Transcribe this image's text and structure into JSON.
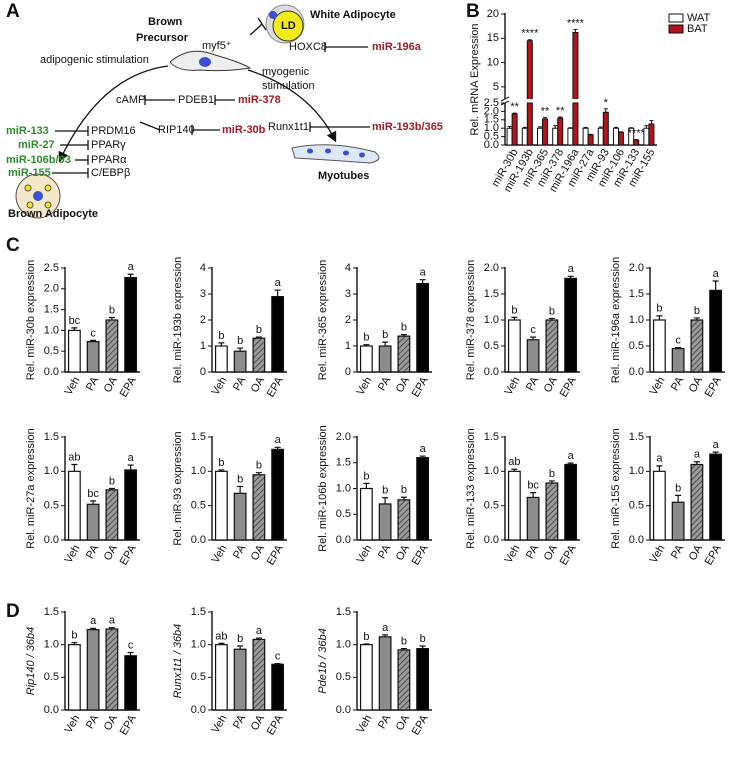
{
  "panel_labels": [
    "A",
    "B",
    "C",
    "D"
  ],
  "diagram": {
    "precursor": [
      "Brown",
      "Precursor"
    ],
    "myf5": "myf5⁺",
    "white_adipocyte": "White Adipocyte",
    "ld": "LD",
    "hoxc8": "HOXC8",
    "mir196a": "miR-196a",
    "adipogenic": "adipogenic stimulation",
    "myogenic": [
      "myogenic",
      "stimulation"
    ],
    "camp": "cAMP",
    "pdeb1": "PDEB1",
    "mir378": "miR-378",
    "runx1t1": "Runx1t1",
    "mir193b365": "miR-193b/365",
    "rip140": "RIP140",
    "mir30b": "miR-30b",
    "mir133": "miR-133",
    "prdm16": "PRDM16",
    "mir27": "miR-27",
    "ppar_g": "PPARγ",
    "mir106b93": "miR-106b/93",
    "ppar_a": "PPARα",
    "mir155": "miR-155",
    "cebpb": "C/EBPβ",
    "brown_adipocyte": "Brown Adipocyte",
    "myotubes": "Myotubes"
  },
  "chart_data": [
    {
      "type": "broken-bar",
      "ylabel": "Rel. mRNA Expression",
      "categories": [
        "miR-30b",
        "miR-193b",
        "miR-365",
        "miR-378",
        "miR-196a",
        "miR-27a",
        "miR-93",
        "miR-106",
        "miR-133",
        "miR-155"
      ],
      "series": [
        {
          "name": "WAT",
          "color": "#ffffff",
          "values": [
            1.0,
            1.0,
            1.0,
            1.0,
            1.0,
            1.0,
            1.0,
            1.0,
            1.0,
            1.0
          ],
          "errors": [
            0.1,
            0.05,
            0.08,
            0.15,
            0.03,
            0.05,
            0.07,
            0.05,
            0.03,
            0.15
          ]
        },
        {
          "name": "BAT",
          "color": "#b3141b",
          "values": [
            1.85,
            14.5,
            1.55,
            1.6,
            16.2,
            0.6,
            1.95,
            0.75,
            0.3,
            1.25
          ],
          "errors": [
            0.05,
            0.2,
            0.08,
            0.07,
            0.6,
            0.03,
            0.2,
            0.03,
            0.02,
            0.2
          ],
          "annotations": [
            "**",
            "****",
            "**",
            "**",
            "****",
            null,
            "*",
            null,
            "****",
            null
          ]
        }
      ],
      "ylim_lower": [
        0,
        2.5
      ],
      "ylim_upper": [
        2.5,
        20
      ],
      "yticks": [
        {
          "value": 0,
          "label": "0.0"
        },
        0.5,
        {
          "value": 1,
          "label": "1.0"
        },
        1.5,
        {
          "value": 2,
          "label": "2.0"
        },
        2.5,
        5,
        10,
        15,
        20
      ],
      "legend": "top-right"
    },
    {
      "type": "bar",
      "ylabel": "Rel. miR-30b expression",
      "categories": [
        "Veh",
        "PA",
        "OA",
        "EPA"
      ],
      "values": [
        1.0,
        0.73,
        1.25,
        2.27
      ],
      "errors": [
        0.06,
        0.03,
        0.06,
        0.08
      ],
      "annotations": [
        "bc",
        "c",
        "b",
        "a"
      ],
      "colors": [
        "#ffffff",
        "#8c8c8c",
        "#9a9a9a",
        "#000000"
      ],
      "patterns": [
        "solid",
        "solid",
        "hatched",
        "solid"
      ],
      "ylim": [
        0,
        2.5
      ],
      "yticks": [
        {
          "value": 0,
          "label": "0.0"
        },
        0.5,
        {
          "value": 1,
          "label": "1.0"
        },
        1.5,
        {
          "value": 2,
          "label": "2.0"
        },
        2.5
      ]
    },
    {
      "type": "bar",
      "ylabel": "Rel. miR-193b expression",
      "categories": [
        "Veh",
        "PA",
        "OA",
        "EPA"
      ],
      "values": [
        1.0,
        0.8,
        1.3,
        2.9
      ],
      "errors": [
        0.12,
        0.12,
        0.04,
        0.25
      ],
      "annotations": [
        "b",
        "b",
        "b",
        "a"
      ],
      "colors": [
        "#ffffff",
        "#8c8c8c",
        "#9a9a9a",
        "#000000"
      ],
      "patterns": [
        "solid",
        "solid",
        "hatched",
        "solid"
      ],
      "ylim": [
        0,
        4
      ],
      "yticks": [
        0,
        1,
        2,
        3,
        4
      ]
    },
    {
      "type": "bar",
      "ylabel": "Rel. miR-365 expression",
      "categories": [
        "Veh",
        "PA",
        "OA",
        "EPA"
      ],
      "values": [
        1.0,
        1.0,
        1.38,
        3.4
      ],
      "errors": [
        0.05,
        0.15,
        0.06,
        0.15
      ],
      "annotations": [
        "b",
        "b",
        "b",
        "a"
      ],
      "colors": [
        "#ffffff",
        "#8c8c8c",
        "#9a9a9a",
        "#000000"
      ],
      "patterns": [
        "solid",
        "solid",
        "hatched",
        "solid"
      ],
      "ylim": [
        0,
        4
      ],
      "yticks": [
        0,
        1,
        2,
        3,
        4
      ]
    },
    {
      "type": "bar",
      "ylabel": "Rel. miR-378 expression",
      "categories": [
        "Veh",
        "PA",
        "OA",
        "EPA"
      ],
      "values": [
        1.0,
        0.62,
        1.0,
        1.8
      ],
      "errors": [
        0.05,
        0.05,
        0.03,
        0.04
      ],
      "annotations": [
        "b",
        "c",
        "b",
        "a"
      ],
      "colors": [
        "#ffffff",
        "#8c8c8c",
        "#9a9a9a",
        "#000000"
      ],
      "patterns": [
        "solid",
        "solid",
        "hatched",
        "solid"
      ],
      "ylim": [
        0,
        2.0
      ],
      "yticks": [
        {
          "value": 0,
          "label": "0.0"
        },
        0.5,
        {
          "value": 1,
          "label": "1.0"
        },
        1.5,
        {
          "value": 2,
          "label": "2.0"
        }
      ]
    },
    {
      "type": "bar",
      "ylabel": "Rel. miR-196a expression",
      "categories": [
        "Veh",
        "PA",
        "OA",
        "EPA"
      ],
      "values": [
        1.0,
        0.45,
        1.0,
        1.57
      ],
      "errors": [
        0.08,
        0.02,
        0.04,
        0.18
      ],
      "annotations": [
        "b",
        "c",
        "b",
        "a"
      ],
      "colors": [
        "#ffffff",
        "#8c8c8c",
        "#9a9a9a",
        "#000000"
      ],
      "patterns": [
        "solid",
        "solid",
        "hatched",
        "solid"
      ],
      "ylim": [
        0,
        2.0
      ],
      "yticks": [
        {
          "value": 0,
          "label": "0.0"
        },
        0.5,
        {
          "value": 1,
          "label": "1.0"
        },
        1.5,
        {
          "value": 2,
          "label": "2.0"
        }
      ]
    },
    {
      "type": "bar",
      "ylabel": "Rel. miR-27a expression",
      "categories": [
        "Veh",
        "PA",
        "OA",
        "EPA"
      ],
      "values": [
        1.0,
        0.52,
        0.73,
        1.02
      ],
      "errors": [
        0.1,
        0.05,
        0.02,
        0.07
      ],
      "annotations": [
        "ab",
        "bc",
        "b",
        "a"
      ],
      "colors": [
        "#ffffff",
        "#8c8c8c",
        "#9a9a9a",
        "#000000"
      ],
      "patterns": [
        "solid",
        "solid",
        "hatched",
        "solid"
      ],
      "ylim": [
        0,
        1.5
      ],
      "yticks": [
        {
          "value": 0,
          "label": "0.0"
        },
        0.5,
        {
          "value": 1,
          "label": "1.0"
        },
        1.5
      ]
    },
    {
      "type": "bar",
      "ylabel": "Rel. miR-93 expression",
      "categories": [
        "Veh",
        "PA",
        "OA",
        "EPA"
      ],
      "values": [
        1.0,
        0.68,
        0.95,
        1.32
      ],
      "errors": [
        0.02,
        0.1,
        0.03,
        0.03
      ],
      "annotations": [
        "b",
        "b",
        "b",
        "a"
      ],
      "colors": [
        "#ffffff",
        "#8c8c8c",
        "#9a9a9a",
        "#000000"
      ],
      "patterns": [
        "solid",
        "solid",
        "hatched",
        "solid"
      ],
      "ylim": [
        0,
        1.5
      ],
      "yticks": [
        {
          "value": 0,
          "label": "0.0"
        },
        0.5,
        {
          "value": 1,
          "label": "1.0"
        },
        1.5
      ]
    },
    {
      "type": "bar",
      "ylabel": "Rel. miR-106b expression",
      "categories": [
        "Veh",
        "PA",
        "OA",
        "EPA"
      ],
      "values": [
        1.0,
        0.7,
        0.78,
        1.6
      ],
      "errors": [
        0.1,
        0.12,
        0.05,
        0.03
      ],
      "annotations": [
        "b",
        "b",
        "b",
        "a"
      ],
      "colors": [
        "#ffffff",
        "#8c8c8c",
        "#9a9a9a",
        "#000000"
      ],
      "patterns": [
        "solid",
        "solid",
        "hatched",
        "solid"
      ],
      "ylim": [
        0,
        2.0
      ],
      "yticks": [
        {
          "value": 0,
          "label": "0.0"
        },
        0.5,
        {
          "value": 1,
          "label": "1.0"
        },
        1.5,
        {
          "value": 2,
          "label": "2.0"
        }
      ]
    },
    {
      "type": "bar",
      "ylabel": "Rel. miR-133 expression",
      "categories": [
        "Veh",
        "PA",
        "OA",
        "EPA"
      ],
      "values": [
        1.0,
        0.62,
        0.83,
        1.1
      ],
      "errors": [
        0.03,
        0.07,
        0.03,
        0.02
      ],
      "annotations": [
        "ab",
        "bc",
        "b",
        "a"
      ],
      "colors": [
        "#ffffff",
        "#8c8c8c",
        "#9a9a9a",
        "#000000"
      ],
      "patterns": [
        "solid",
        "solid",
        "hatched",
        "solid"
      ],
      "ylim": [
        0,
        1.5
      ],
      "yticks": [
        {
          "value": 0,
          "label": "0.0"
        },
        0.5,
        {
          "value": 1,
          "label": "1.0"
        },
        1.5
      ]
    },
    {
      "type": "bar",
      "ylabel": "Rel. miR-155 expression",
      "categories": [
        "Veh",
        "PA",
        "OA",
        "EPA"
      ],
      "values": [
        1.0,
        0.55,
        1.1,
        1.25
      ],
      "errors": [
        0.08,
        0.1,
        0.04,
        0.03
      ],
      "annotations": [
        "a",
        "b",
        "a",
        "a"
      ],
      "colors": [
        "#ffffff",
        "#8c8c8c",
        "#9a9a9a",
        "#000000"
      ],
      "patterns": [
        "solid",
        "solid",
        "hatched",
        "solid"
      ],
      "ylim": [
        0,
        1.5
      ],
      "yticks": [
        {
          "value": 0,
          "label": "0.0"
        },
        0.5,
        {
          "value": 1,
          "label": "1.0"
        },
        1.5
      ]
    },
    {
      "type": "bar",
      "ylabel": "Rip140 / 36b4",
      "ylabel_italic": true,
      "categories": [
        "Veh",
        "PA",
        "OA",
        "EPA"
      ],
      "values": [
        1.0,
        1.23,
        1.24,
        0.83
      ],
      "errors": [
        0.03,
        0.02,
        0.02,
        0.05
      ],
      "annotations": [
        "b",
        "a",
        "a",
        "c"
      ],
      "colors": [
        "#ffffff",
        "#8c8c8c",
        "#9a9a9a",
        "#000000"
      ],
      "patterns": [
        "solid",
        "solid",
        "hatched",
        "solid"
      ],
      "ylim": [
        0,
        1.5
      ],
      "yticks": [
        {
          "value": 0,
          "label": "0.0"
        },
        0.5,
        {
          "value": 1,
          "label": "1.0"
        },
        1.5
      ]
    },
    {
      "type": "bar",
      "ylabel": "Runx1t1 / 36b4",
      "ylabel_italic": true,
      "categories": [
        "Veh",
        "PA",
        "OA",
        "EPA"
      ],
      "values": [
        1.0,
        0.93,
        1.08,
        0.7
      ],
      "errors": [
        0.02,
        0.05,
        0.02,
        0.01
      ],
      "annotations": [
        "ab",
        "b",
        "a",
        "c"
      ],
      "colors": [
        "#ffffff",
        "#8c8c8c",
        "#9a9a9a",
        "#000000"
      ],
      "patterns": [
        "solid",
        "solid",
        "hatched",
        "solid"
      ],
      "ylim": [
        0,
        1.5
      ],
      "yticks": [
        {
          "value": 0,
          "label": "0.0"
        },
        0.5,
        {
          "value": 1,
          "label": "1.0"
        },
        1.5
      ]
    },
    {
      "type": "bar",
      "ylabel": "Pde1b / 36b4",
      "ylabel_italic": true,
      "categories": [
        "Veh",
        "PA",
        "OA",
        "EPA"
      ],
      "values": [
        1.0,
        1.12,
        0.92,
        0.94
      ],
      "errors": [
        0.01,
        0.03,
        0.02,
        0.04
      ],
      "annotations": [
        "b",
        "a",
        "b",
        "b"
      ],
      "colors": [
        "#ffffff",
        "#8c8c8c",
        "#9a9a9a",
        "#000000"
      ],
      "patterns": [
        "solid",
        "solid",
        "hatched",
        "solid"
      ],
      "ylim": [
        0,
        1.5
      ],
      "yticks": [
        {
          "value": 0,
          "label": "0.0"
        },
        0.5,
        {
          "value": 1,
          "label": "1.0"
        },
        1.5
      ]
    }
  ]
}
